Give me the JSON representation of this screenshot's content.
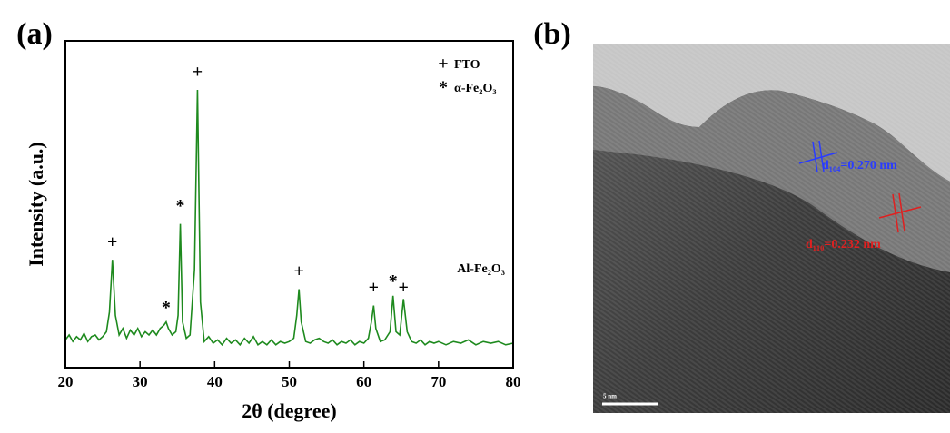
{
  "chart_data": {
    "type": "line",
    "panel_label": "(a)",
    "x_label": "2θ (degree)",
    "y_label": "Intensity (a.u.)",
    "xlim": [
      20,
      80
    ],
    "xticks": [
      20,
      30,
      40,
      50,
      60,
      70,
      80
    ],
    "ylim": [
      0,
      100
    ],
    "series": [
      {
        "color": "#1e8a1e",
        "x": [
          20,
          20.5,
          21,
          21.5,
          22,
          22.5,
          23,
          23.5,
          24,
          24.5,
          25,
          25.5,
          25.9,
          26.3,
          26.7,
          27.2,
          27.7,
          28.2,
          28.7,
          29.2,
          29.7,
          30.2,
          30.7,
          31.2,
          31.7,
          32.2,
          32.7,
          33.2,
          33.5,
          33.8,
          34.3,
          34.8,
          35.1,
          35.4,
          35.7,
          36.2,
          36.7,
          37.3,
          37.7,
          38.1,
          38.6,
          39.2,
          39.8,
          40.4,
          41,
          41.6,
          42.2,
          42.8,
          43.4,
          44,
          44.6,
          45.2,
          45.8,
          46.4,
          47,
          47.6,
          48.2,
          48.8,
          49.4,
          50,
          50.6,
          51,
          51.3,
          51.6,
          52.2,
          52.8,
          53.4,
          54,
          54.6,
          55.2,
          55.8,
          56.4,
          57,
          57.6,
          58.2,
          58.8,
          59.4,
          60,
          60.6,
          61,
          61.3,
          61.6,
          62.2,
          62.8,
          63.5,
          63.9,
          64.3,
          64.8,
          65.3,
          65.8,
          66.4,
          67,
          67.6,
          68.2,
          68.8,
          69.4,
          70,
          71,
          72,
          73,
          74,
          75,
          76,
          77,
          78,
          79,
          80
        ],
        "values": [
          8.5,
          10,
          8,
          9.5,
          8.5,
          10.5,
          8,
          9.5,
          10,
          8.5,
          9.5,
          11,
          17,
          33,
          16,
          10,
          12,
          9,
          11.5,
          10,
          12,
          9.5,
          11,
          10,
          11.5,
          10,
          12,
          13,
          14,
          12,
          10,
          11,
          16,
          44,
          14,
          9,
          10,
          30,
          85,
          20,
          8,
          9.5,
          7.5,
          8.5,
          7,
          9,
          7.5,
          8.5,
          7,
          9,
          7.5,
          9.5,
          7,
          8,
          7,
          8.5,
          7,
          8,
          7.5,
          8,
          9,
          16,
          24,
          14,
          8,
          7.5,
          8.5,
          9,
          8,
          7.5,
          8.5,
          7,
          8,
          7.5,
          8.5,
          7,
          8,
          7.5,
          9,
          14,
          19,
          12,
          8,
          8.5,
          11,
          22,
          11,
          10,
          21,
          11,
          8,
          7.5,
          8.5,
          7,
          8,
          7.5,
          8,
          7,
          8,
          7.5,
          8.5,
          7,
          8,
          7.5,
          8,
          7,
          7.5
        ]
      }
    ],
    "annotations": [
      {
        "text": "+",
        "x": 26.3,
        "y": 38
      },
      {
        "text": "*",
        "x": 33.5,
        "y": 18
      },
      {
        "text": "*",
        "x": 35.4,
        "y": 49
      },
      {
        "text": "+",
        "x": 37.7,
        "y": 90
      },
      {
        "text": "+",
        "x": 51.3,
        "y": 29
      },
      {
        "text": "+",
        "x": 61.3,
        "y": 24
      },
      {
        "text": "*",
        "x": 63.9,
        "y": 26
      },
      {
        "text": "+",
        "x": 65.3,
        "y": 24
      },
      {
        "text": "Al-Fe₂O₃",
        "x": 75.7,
        "y": 30
      }
    ],
    "legend": [
      {
        "symbol": "+",
        "label": "FTO"
      },
      {
        "symbol": "*",
        "label": "α-Fe₂O₃"
      }
    ]
  },
  "image": {
    "panel_label": "(b)",
    "blue_label": "d₁₀₄=0.270 nm",
    "red_label": "d₁₁₀=0.232 nm",
    "scale_label": "5 nm"
  }
}
